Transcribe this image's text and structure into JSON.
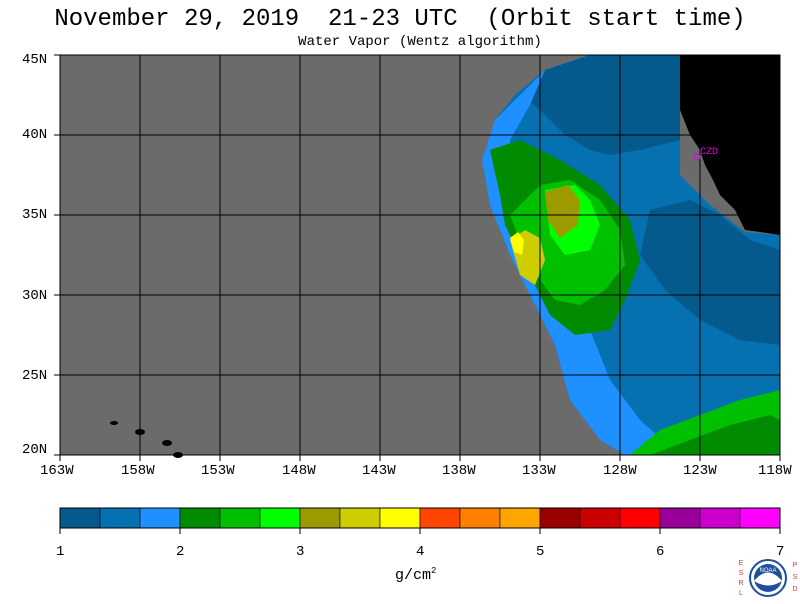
{
  "title": "November 29, 2019  21-23 UTC  (Orbit start time)",
  "subtitle": "Water Vapor (Wentz algorithm)",
  "lat_labels": [
    "45N",
    "40N",
    "35N",
    "30N",
    "25N",
    "20N"
  ],
  "lon_labels": [
    "163W",
    "158W",
    "153W",
    "148W",
    "143W",
    "138W",
    "133W",
    "128W",
    "123W",
    "118W"
  ],
  "station": "CZD",
  "colorbar": {
    "colors": [
      "#045a8d",
      "#0571b0",
      "#1e90ff",
      "#008b00",
      "#00c000",
      "#00ff00",
      "#9b9b00",
      "#cdcd00",
      "#ffff00",
      "#ff4500",
      "#ff7f00",
      "#ffa500",
      "#990000",
      "#cc0000",
      "#ff0000",
      "#990099",
      "#cc00cc",
      "#ff00ff"
    ],
    "tick_labels": [
      "1",
      "2",
      "3",
      "4",
      "5",
      "6",
      "7"
    ],
    "units": "g/cm",
    "units_sup": "2"
  },
  "logo": {
    "left_letters": "ESRL",
    "right_letters": "PSD",
    "name": "NOAA"
  },
  "colors": {
    "land": "#000000",
    "no_data": "#6b6b6b",
    "grid": "#000000"
  }
}
